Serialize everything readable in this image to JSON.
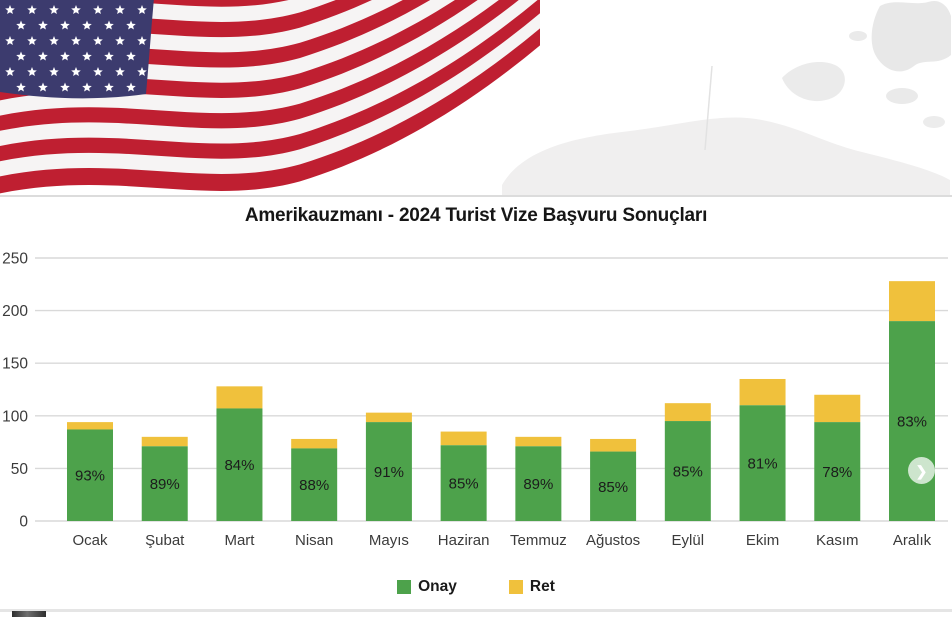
{
  "chart_data": {
    "type": "bar",
    "stacked": true,
    "title": "Amerikauzmanı - 2024 Turist Vize Başvuru Sonuçları",
    "categories": [
      "Ocak",
      "Şubat",
      "Mart",
      "Nisan",
      "Mayıs",
      "Haziran",
      "Temmuz",
      "Ağustos",
      "Eylül",
      "Ekim",
      "Kasım",
      "Aralık"
    ],
    "series": [
      {
        "name": "Onay",
        "color": "#4da24b",
        "values": [
          87,
          71,
          107,
          69,
          94,
          72,
          71,
          66,
          95,
          110,
          94,
          190
        ]
      },
      {
        "name": "Ret",
        "color": "#f0c13c",
        "values": [
          7,
          9,
          21,
          9,
          9,
          13,
          9,
          12,
          17,
          25,
          26,
          38
        ]
      }
    ],
    "totals": [
      94,
      80,
      128,
      78,
      103,
      85,
      80,
      78,
      112,
      135,
      120,
      228
    ],
    "bar_labels": [
      "93%",
      "89%",
      "84%",
      "88%",
      "91%",
      "85%",
      "89%",
      "85%",
      "85%",
      "81%",
      "78%",
      "83%"
    ],
    "xlabel": "",
    "ylabel": "",
    "ylim": [
      0,
      250
    ],
    "yticks": [
      0,
      50,
      100,
      150,
      200,
      250
    ],
    "grid": true,
    "legend_position": "bottom"
  },
  "icons": {
    "next_arrow": "❯"
  },
  "colors": {
    "grid": "#d9d9d9",
    "axis_text": "#3b3b3b",
    "bar_label_text": "#1c1c1c",
    "flag_red": "#bf1f31",
    "flag_blue": "#3c3b6e"
  }
}
